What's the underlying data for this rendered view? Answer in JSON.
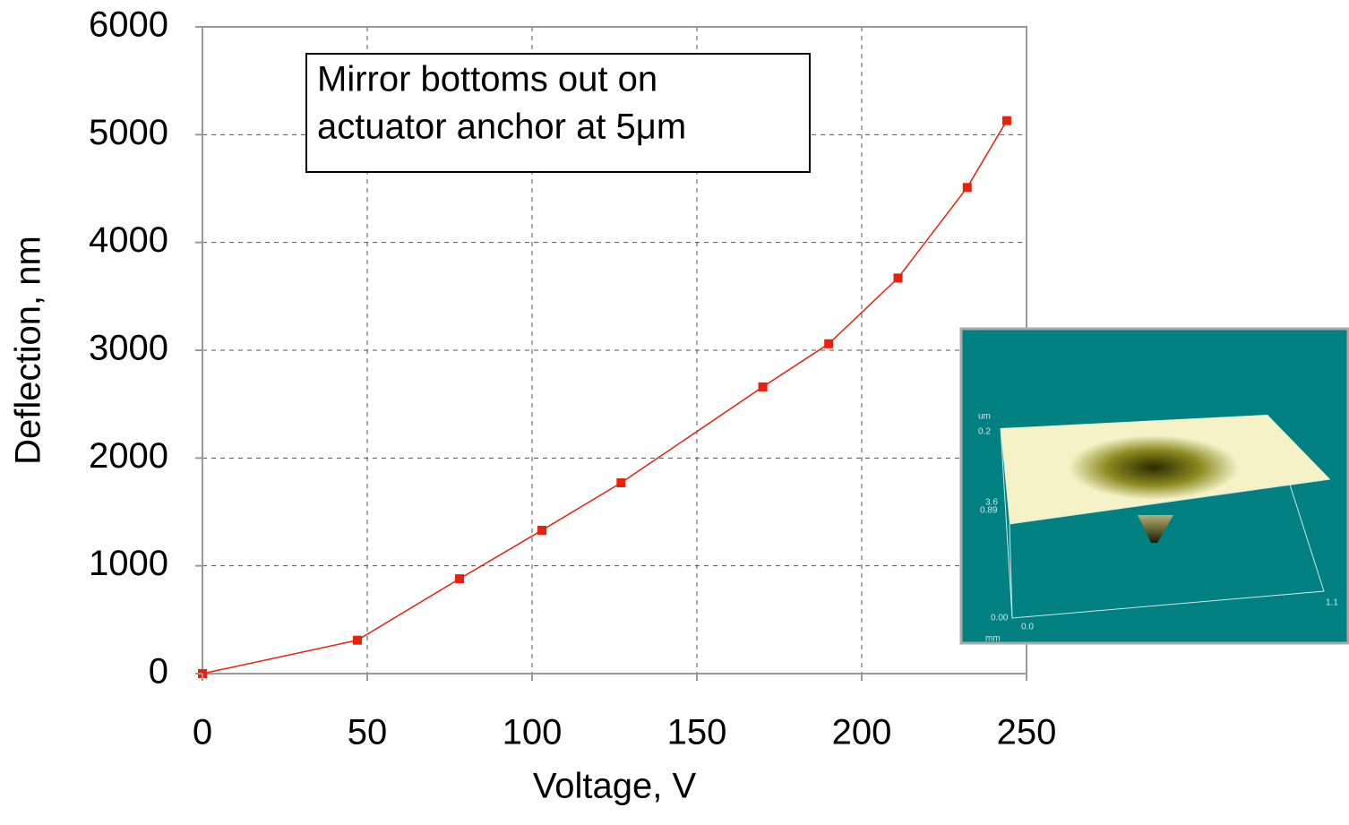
{
  "chart_data": {
    "type": "line",
    "xlabel": "Voltage, V",
    "ylabel": "Deflection, nm",
    "annotation": [
      "Mirror bottoms out on",
      "actuator anchor at 5μm"
    ],
    "x": [
      0,
      47,
      78,
      103,
      127,
      170,
      190,
      211,
      232,
      244
    ],
    "series": [
      {
        "color": "#e8200c",
        "values": [
          0,
          310,
          880,
          1330,
          1770,
          2660,
          3060,
          3670,
          4510,
          5130
        ]
      }
    ],
    "xlim": [
      0,
      250
    ],
    "xticks": [
      0,
      50,
      100,
      150,
      200,
      250
    ],
    "ylim": [
      0,
      6000
    ],
    "yticks": [
      0,
      1000,
      2000,
      3000,
      4000,
      5000,
      6000
    ],
    "grid": true,
    "marker": "square",
    "inset_labels": [
      "um",
      "0.2",
      "3.6",
      "0.89",
      "0.00",
      "0.0",
      "mm",
      "1.1"
    ]
  }
}
